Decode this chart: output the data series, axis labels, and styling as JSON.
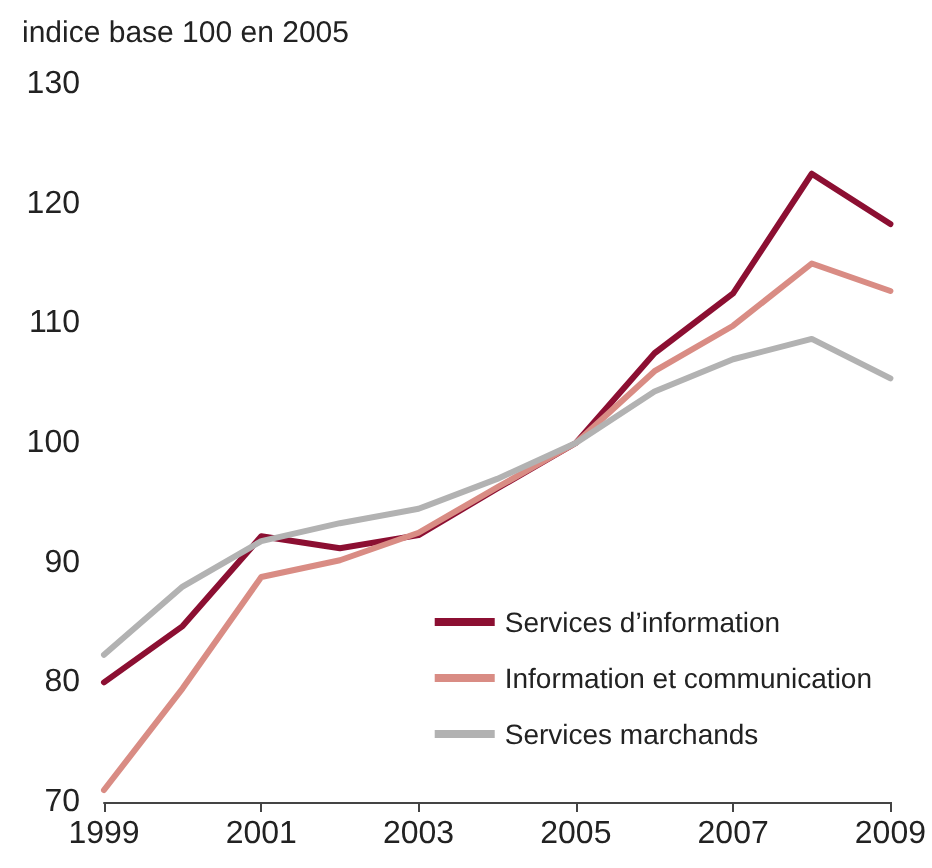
{
  "chart_data": {
    "type": "line",
    "ylabel": "indice base 100 en 2005",
    "x": [
      1999,
      2000,
      2001,
      2002,
      2003,
      2004,
      2005,
      2006,
      2007,
      2008,
      2009
    ],
    "series": [
      {
        "name": "Services d’information",
        "color": "#8c0f32",
        "values": [
          80,
          84.7,
          92.2,
          91.2,
          92.3,
          96.2,
          100,
          107.5,
          112.5,
          122.5,
          118.3
        ]
      },
      {
        "name": "Information et communication",
        "color": "#d98c84",
        "values": [
          71,
          79.5,
          88.8,
          90.2,
          92.5,
          96.3,
          100,
          106,
          109.8,
          115,
          112.7
        ]
      },
      {
        "name": "Services marchands",
        "color": "#b2b2b2",
        "values": [
          82.3,
          88,
          91.8,
          93.3,
          94.5,
          97,
          100,
          104.3,
          107,
          108.7,
          105.4
        ]
      }
    ],
    "xlim": [
      1999,
      2009
    ],
    "xticks": [
      1999,
      2001,
      2003,
      2005,
      2007,
      2009
    ],
    "ylim": [
      70,
      130
    ],
    "yticks": [
      70,
      80,
      90,
      100,
      110,
      120,
      130
    ],
    "grid": false,
    "legend": "bottom right",
    "marker": "none",
    "line_style": "solid"
  }
}
